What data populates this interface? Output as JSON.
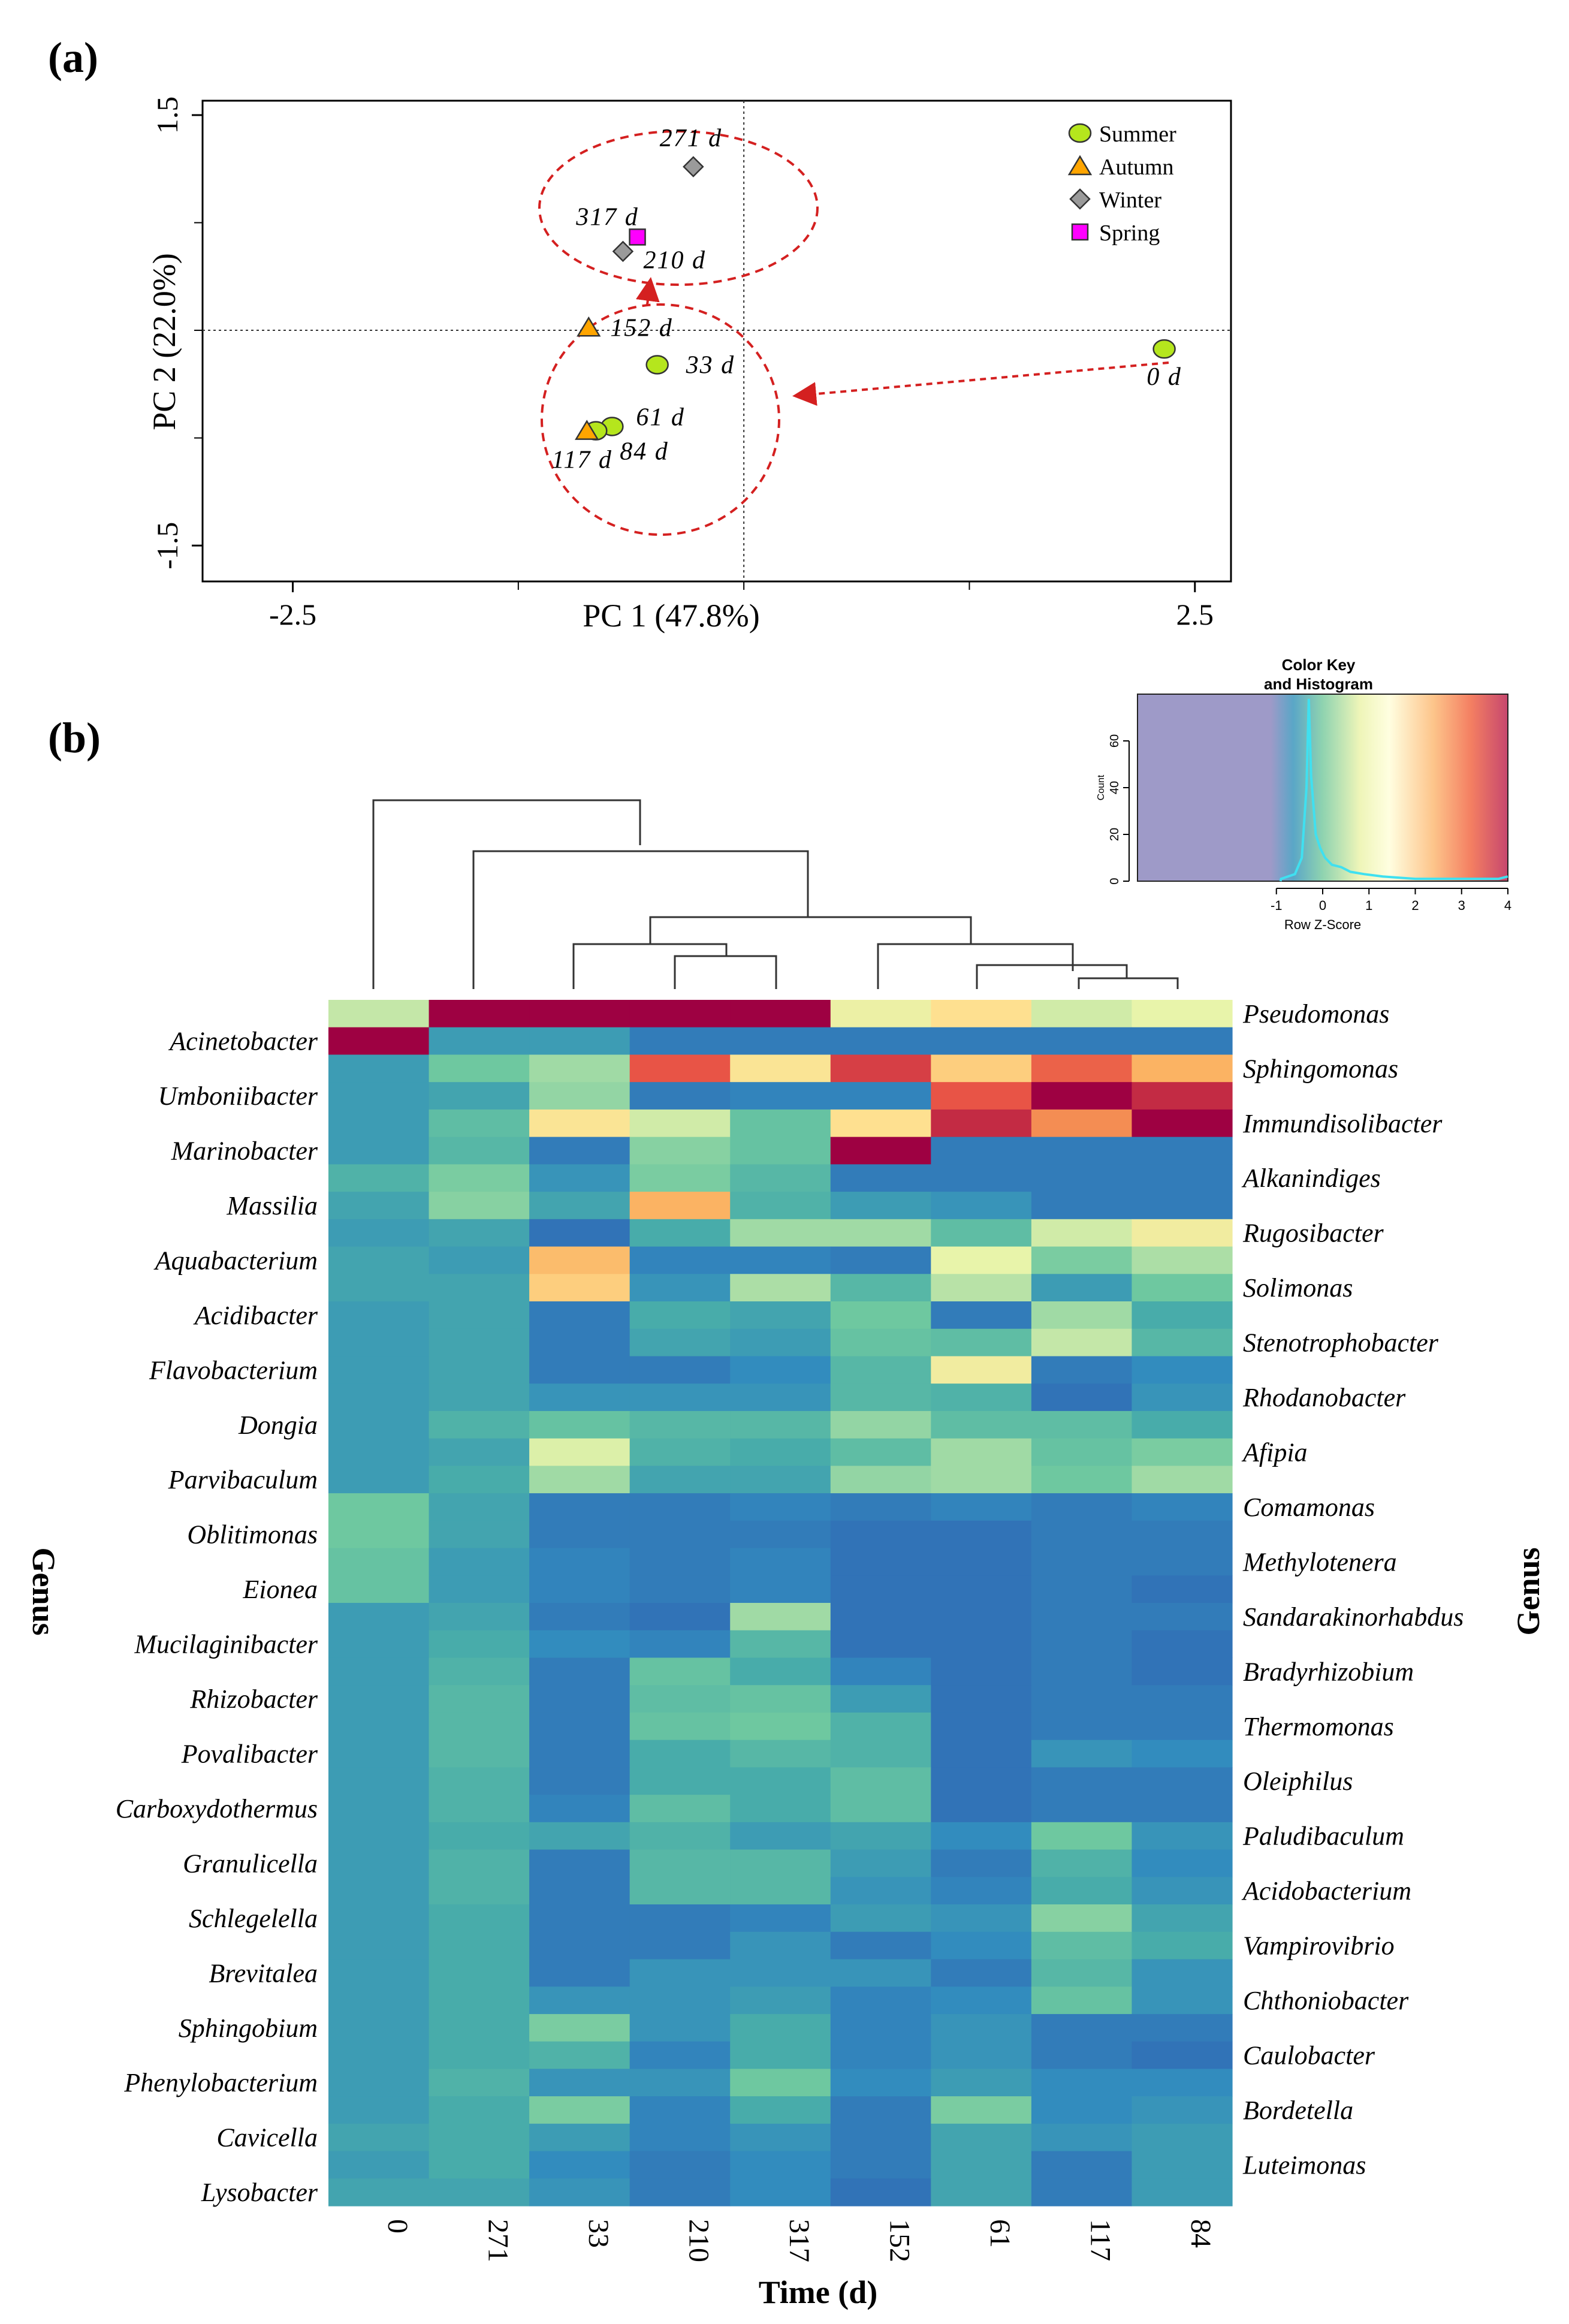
{
  "panel_a": {
    "label": "(a)",
    "chart_data": {
      "type": "scatter",
      "title": "",
      "xlabel": "PC 1 (47.8%)",
      "ylabel": "PC 2 (22.0%)",
      "xlim": [
        -3.0,
        2.7
      ],
      "ylim": [
        -1.75,
        1.6
      ],
      "x_ticks": [
        "-2.5",
        "2.5"
      ],
      "x_tick_values": [
        -2.5,
        2.5
      ],
      "y_ticks": [
        "-1.5",
        "1.5"
      ],
      "y_tick_values": [
        -1.5,
        1.5
      ],
      "reference_lines": {
        "x": 0,
        "y": 0
      },
      "legend": [
        {
          "name": "Summer",
          "shape": "circle",
          "color": "#b5e61d"
        },
        {
          "name": "Autumn",
          "shape": "triangle",
          "color": "#ffa500"
        },
        {
          "name": "Winter",
          "shape": "diamond",
          "color": "#9a9a9a"
        },
        {
          "name": "Spring",
          "shape": "square",
          "color": "#ff00ff"
        }
      ],
      "points": [
        {
          "label": "0 d",
          "season": "Summer",
          "x": 2.33,
          "y": -0.13
        },
        {
          "label": "33 d",
          "season": "Summer",
          "x": -0.48,
          "y": -0.24
        },
        {
          "label": "61 d",
          "season": "Summer",
          "x": -0.73,
          "y": -0.67
        },
        {
          "label": "84 d",
          "season": "Summer",
          "x": -0.82,
          "y": -0.7
        },
        {
          "label": "117 d",
          "season": "Autumn",
          "x": -0.87,
          "y": -0.7
        },
        {
          "label": "152 d",
          "season": "Autumn",
          "x": -0.86,
          "y": 0.02
        },
        {
          "label": "210 d",
          "season": "Winter",
          "x": -0.67,
          "y": 0.55
        },
        {
          "label": "271 d",
          "season": "Winter",
          "x": -0.28,
          "y": 1.14
        },
        {
          "label": "317 d",
          "season": "Spring",
          "x": -0.59,
          "y": 0.65
        }
      ],
      "annotations": [
        "ellipse around 271 d, 317 d, 210 d",
        "ellipse around 152 d, 33 d, 61 d, 84 d, 117 d",
        "dashed arrow from 0 d to lower cluster",
        "dashed arrow from lower cluster to upper cluster"
      ]
    }
  },
  "panel_b": {
    "label": "(b)",
    "chart_data": {
      "type": "heatmap",
      "title": "",
      "xlabel": "Time (d)",
      "ylabel": "Genus",
      "columns": [
        "0",
        "271",
        "33",
        "210",
        "317",
        "152",
        "61",
        "117",
        "84"
      ],
      "rows": [
        "Pseudomonas",
        "Acinetobacter",
        "Sphingomonas",
        "Umboniibacter",
        "Immundisolibacter",
        "Marinobacter",
        "Alkanindiges",
        "Massilia",
        "Rugosibacter",
        "Aquabacterium",
        "Solimonas",
        "Acidibacter",
        "Stenotrophobacter",
        "Flavobacterium",
        "Rhodanobacter",
        "Dongia",
        "Afipia",
        "Parvibaculum",
        "Comamonas",
        "Oblitimonas",
        "Methylotenera",
        "Eionea",
        "Sandarakinorhabdus",
        "Mucilaginibacter",
        "Bradyrhizobium",
        "Rhizobacter",
        "Thermomonas",
        "Povalibacter",
        "Oleiphilus",
        "Carboxydothermus",
        "Paludibaculum",
        "Granulicella",
        "Acidobacterium",
        "Schlegelella",
        "Vampirovibrio",
        "Brevitalea",
        "Chthoniobacter",
        "Sphingobium",
        "Caulobacter",
        "Phenylobacterium",
        "Bordetella",
        "Cavicella",
        "Luteimonas",
        "Lysobacter"
      ],
      "left_labels": [
        "Acinetobacter",
        "Umboniibacter",
        "Marinobacter",
        "Massilia",
        "Aquabacterium",
        "Acidibacter",
        "Flavobacterium",
        "Dongia",
        "Parvibaculum",
        "Oblitimonas",
        "Eionea",
        "Mucilaginibacter",
        "Rhizobacter",
        "Povalibacter",
        "Carboxydothermus",
        "Granulicella",
        "Schlegelella",
        "Brevitalea",
        "Sphingobium",
        "Phenylobacterium",
        "Cavicella",
        "Lysobacter"
      ],
      "right_labels": [
        "Pseudomonas",
        "Sphingomonas",
        "Immundisolibacter",
        "Alkanindiges",
        "Rugosibacter",
        "Solimonas",
        "Stenotrophobacter",
        "Rhodanobacter",
        "Afipia",
        "Comamonas",
        "Methylotenera",
        "Sandarakinorhabdus",
        "Bradyrhizobium",
        "Thermomonas",
        "Oleiphilus",
        "Paludibaculum",
        "Acidobacterium",
        "Vampirovibrio",
        "Chthoniobacter",
        "Caulobacter",
        "Bordetella",
        "Luteimonas"
      ],
      "values": [
        [
          1.2,
          4.0,
          4.0,
          4.0,
          4.0,
          1.6,
          2.0,
          1.3,
          1.5
        ],
        [
          4.0,
          -0.2,
          -0.2,
          -0.6,
          -0.6,
          -0.6,
          -0.6,
          -0.6,
          -0.6
        ],
        [
          -0.2,
          0.5,
          0.9,
          3.2,
          1.9,
          3.4,
          2.2,
          3.1,
          2.5
        ],
        [
          -0.2,
          -0.1,
          0.8,
          -0.6,
          -0.5,
          -0.5,
          3.2,
          4.0,
          3.6
        ],
        [
          -0.2,
          0.3,
          1.9,
          1.3,
          0.4,
          2.0,
          3.6,
          2.8,
          4.0
        ],
        [
          -0.2,
          0.2,
          -0.6,
          0.7,
          0.4,
          4.0,
          -0.6,
          -0.6,
          -0.6
        ],
        [
          0.1,
          0.6,
          -0.3,
          0.6,
          0.2,
          -0.6,
          -0.6,
          -0.6,
          -0.6
        ],
        [
          -0.1,
          0.7,
          -0.1,
          2.5,
          0.1,
          -0.2,
          -0.3,
          -0.6,
          -0.6
        ],
        [
          -0.2,
          -0.1,
          -0.7,
          0.0,
          0.9,
          0.9,
          0.3,
          1.3,
          1.7
        ],
        [
          -0.1,
          -0.2,
          2.4,
          -0.5,
          -0.5,
          -0.6,
          1.5,
          0.6,
          1.0
        ],
        [
          -0.1,
          -0.1,
          2.2,
          -0.3,
          1.0,
          0.2,
          1.1,
          -0.2,
          0.5
        ],
        [
          -0.2,
          -0.1,
          -0.6,
          0.0,
          -0.1,
          0.5,
          -0.6,
          0.9,
          0.0
        ],
        [
          -0.2,
          -0.1,
          -0.6,
          -0.1,
          -0.2,
          0.4,
          0.3,
          1.2,
          0.2
        ],
        [
          -0.2,
          -0.1,
          -0.6,
          -0.6,
          -0.4,
          0.2,
          1.7,
          -0.6,
          -0.4
        ],
        [
          -0.2,
          -0.1,
          -0.3,
          -0.3,
          -0.3,
          0.2,
          0.1,
          -0.7,
          -0.3
        ],
        [
          -0.2,
          0.1,
          0.4,
          0.2,
          0.2,
          0.8,
          0.3,
          0.3,
          0.0
        ],
        [
          -0.2,
          -0.1,
          1.4,
          0.1,
          0.0,
          0.3,
          0.9,
          0.4,
          0.6
        ],
        [
          -0.2,
          0.0,
          0.9,
          -0.1,
          -0.1,
          0.8,
          0.9,
          0.5,
          0.9
        ],
        [
          0.5,
          -0.1,
          -0.6,
          -0.6,
          -0.5,
          -0.6,
          -0.5,
          -0.6,
          -0.5
        ],
        [
          0.5,
          -0.1,
          -0.6,
          -0.6,
          -0.6,
          -0.7,
          -0.7,
          -0.6,
          -0.6
        ],
        [
          0.4,
          -0.2,
          -0.5,
          -0.6,
          -0.5,
          -0.7,
          -0.7,
          -0.6,
          -0.6
        ],
        [
          0.4,
          -0.2,
          -0.5,
          -0.6,
          -0.5,
          -0.7,
          -0.7,
          -0.6,
          -0.7
        ],
        [
          -0.2,
          -0.1,
          -0.6,
          -0.7,
          0.9,
          -0.7,
          -0.7,
          -0.6,
          -0.6
        ],
        [
          -0.2,
          0.0,
          -0.4,
          -0.5,
          0.2,
          -0.7,
          -0.7,
          -0.6,
          -0.7
        ],
        [
          -0.2,
          0.1,
          -0.6,
          0.4,
          0.0,
          -0.5,
          -0.7,
          -0.6,
          -0.7
        ],
        [
          -0.2,
          0.2,
          -0.6,
          0.3,
          0.4,
          -0.2,
          -0.7,
          -0.6,
          -0.6
        ],
        [
          -0.2,
          0.2,
          -0.6,
          0.4,
          0.5,
          0.1,
          -0.7,
          -0.6,
          -0.6
        ],
        [
          -0.2,
          0.2,
          -0.6,
          0.0,
          0.2,
          0.1,
          -0.7,
          -0.3,
          -0.4
        ],
        [
          -0.2,
          0.1,
          -0.6,
          0.0,
          0.0,
          0.3,
          -0.7,
          -0.6,
          -0.6
        ],
        [
          -0.2,
          0.1,
          -0.5,
          0.3,
          0.0,
          0.3,
          -0.7,
          -0.6,
          -0.6
        ],
        [
          -0.2,
          0.0,
          -0.1,
          0.1,
          -0.2,
          -0.1,
          -0.4,
          0.5,
          -0.3
        ],
        [
          -0.2,
          0.1,
          -0.6,
          0.2,
          0.2,
          -0.2,
          -0.6,
          0.1,
          -0.4
        ],
        [
          -0.2,
          0.1,
          -0.6,
          0.2,
          0.2,
          -0.3,
          -0.5,
          0.0,
          -0.3
        ],
        [
          -0.2,
          0.0,
          -0.6,
          -0.6,
          -0.5,
          -0.2,
          -0.3,
          0.7,
          -0.1
        ],
        [
          -0.2,
          0.0,
          -0.6,
          -0.6,
          -0.3,
          -0.6,
          -0.4,
          0.3,
          0.0
        ],
        [
          -0.2,
          0.0,
          -0.6,
          -0.3,
          -0.3,
          -0.3,
          -0.6,
          0.2,
          -0.3
        ],
        [
          -0.2,
          0.0,
          -0.3,
          -0.3,
          -0.2,
          -0.5,
          -0.4,
          0.4,
          -0.3
        ],
        [
          -0.2,
          0.0,
          0.6,
          -0.3,
          0.0,
          -0.5,
          -0.3,
          -0.6,
          -0.6
        ],
        [
          -0.2,
          0.0,
          0.1,
          -0.5,
          0.0,
          -0.5,
          -0.3,
          -0.6,
          -0.7
        ],
        [
          -0.2,
          0.1,
          -0.3,
          -0.3,
          0.5,
          -0.4,
          -0.2,
          -0.4,
          -0.4
        ],
        [
          -0.2,
          0.0,
          0.6,
          -0.5,
          0.0,
          -0.6,
          0.6,
          -0.4,
          -0.3
        ],
        [
          -0.1,
          0.0,
          -0.2,
          -0.5,
          -0.3,
          -0.6,
          -0.1,
          -0.3,
          -0.2
        ],
        [
          -0.2,
          0.0,
          -0.4,
          -0.6,
          -0.4,
          -0.6,
          -0.1,
          -0.6,
          -0.2
        ],
        [
          -0.1,
          -0.1,
          -0.3,
          -0.6,
          -0.4,
          -0.7,
          -0.1,
          -0.6,
          -0.2
        ]
      ],
      "dendrogram": "column clustering: 0 | (271 | ((33, (210, 317)), (152, (61, (117, 84)))))"
    }
  },
  "color_key": {
    "title_line1": "Color Key",
    "title_line2": "and Histogram",
    "xlabel": "Row Z-Score",
    "ylabel": "Count",
    "x_ticks": [
      "-1",
      "0",
      "1",
      "2",
      "3",
      "4"
    ],
    "x_tick_values": [
      -1,
      0,
      1,
      2,
      3,
      4
    ],
    "x_range": [
      -4.0,
      4.0
    ],
    "y_ticks": [
      "0",
      "20",
      "40",
      "60"
    ],
    "y_tick_values": [
      0,
      20,
      40,
      60
    ],
    "y_max": 80,
    "histogram_line_color": "#40e0f0",
    "density": [
      [
        -0.9,
        1
      ],
      [
        -0.6,
        3
      ],
      [
        -0.45,
        10
      ],
      [
        -0.35,
        40
      ],
      [
        -0.3,
        78
      ],
      [
        -0.25,
        45
      ],
      [
        -0.15,
        20
      ],
      [
        -0.05,
        14
      ],
      [
        0.05,
        10
      ],
      [
        0.2,
        7
      ],
      [
        0.4,
        6
      ],
      [
        0.6,
        4
      ],
      [
        0.9,
        3
      ],
      [
        1.3,
        2
      ],
      [
        2.0,
        1
      ],
      [
        3.0,
        1
      ],
      [
        3.8,
        1
      ],
      [
        4.0,
        2
      ]
    ]
  }
}
